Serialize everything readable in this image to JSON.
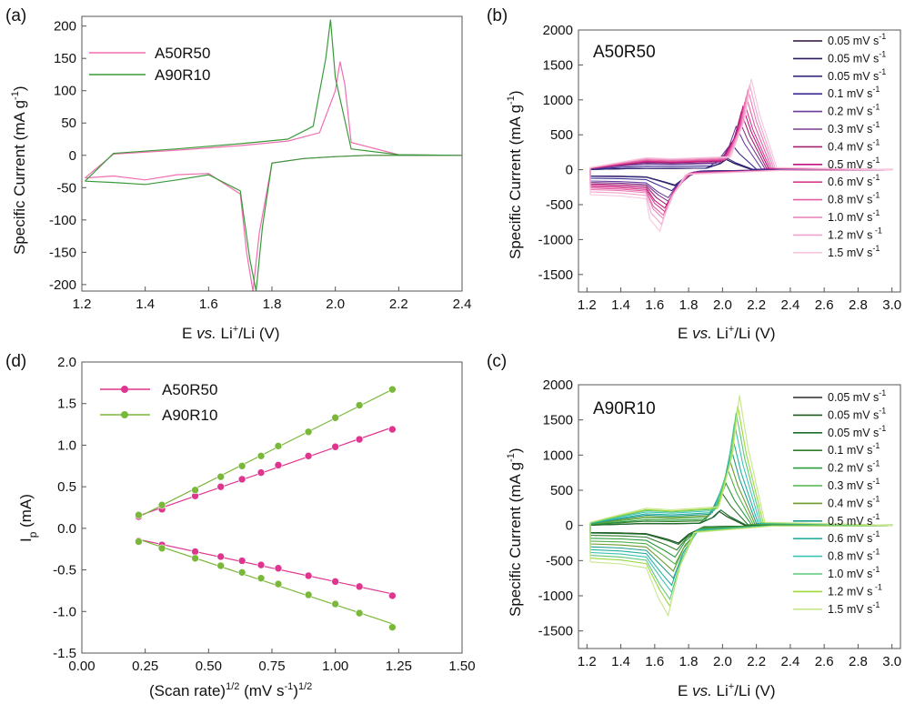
{
  "panels": {
    "a": {
      "letter": "(a)",
      "ylabel": "Specific Current (mA g",
      "ylabel_sup": "-1",
      "ylabel_close": ")",
      "xlabel_pre": "E ",
      "xlabel_vs": "vs.",
      "xlabel_mid": " Li",
      "xlabel_sup": "+",
      "xlabel_post": "/Li (V)",
      "legend": [
        "A50R50",
        "A90R10"
      ]
    },
    "b": {
      "letter": "(b)",
      "sample": "A50R50",
      "ylabel": "Specific Current (mA g",
      "ylabel_sup": "-1",
      "ylabel_close": ")",
      "xlabel_pre": "E ",
      "xlabel_vs": "vs.",
      "xlabel_mid": " Li",
      "xlabel_sup": "+",
      "xlabel_post": "/Li (V)",
      "legend_rates": [
        "0.05 mV s",
        "0.05 mV s",
        "0.05 mV s",
        "0.1 mV s",
        "0.2 mV s",
        "0.3 mV s",
        "0.4 mV s",
        "0.5 mV s",
        "0.6 mV s",
        "0.8 mV s",
        "1.0 mV s",
        "1.2 mV s",
        "1.5 mV s"
      ],
      "legend_sup": "-1",
      "legend_sup_alt": "s-1"
    },
    "c": {
      "letter": "(c)",
      "sample": "A90R10",
      "ylabel": "Specific Current (mA g",
      "ylabel_sup": "-1",
      "ylabel_close": ")",
      "xlabel_pre": "E ",
      "xlabel_vs": "vs.",
      "xlabel_mid": " Li",
      "xlabel_sup": "+",
      "xlabel_post": "/Li (V)",
      "legend_rates": [
        "0.05 mV s",
        "0.05 mV s",
        "0.05 mV s",
        "0.1 mV s",
        "0.2 mV s",
        "0.3 mV s",
        "0.4 mV s",
        "0.5 mV s",
        "0.6 mV s",
        "0.8 mV s",
        "1.0 mV s",
        "1.2 mV s",
        "1.5 mV s"
      ],
      "legend_sup": "-1",
      "legend_sup_alt": "s-1"
    },
    "d": {
      "letter": "(d)",
      "ylabel_pre": "I",
      "ylabel_sub": "p",
      "ylabel_post": " (mA)",
      "xlabel_pre": "(Scan rate)",
      "xlabel_sup1": "1/2",
      "xlabel_mid": " (mV s",
      "xlabel_sup2": "-1",
      "xlabel_close": ")",
      "xlabel_sup3": "1/2",
      "legend": [
        "A50R50",
        "A90R10"
      ]
    }
  },
  "chart_data": [
    {
      "panel": "a",
      "type": "line",
      "xlim": [
        1.2,
        2.4
      ],
      "ylim": [
        -210,
        215
      ],
      "xticks": [
        "1.2",
        "1.4",
        "1.6",
        "1.8",
        "2.0",
        "2.2",
        "2.4"
      ],
      "yticks": [
        "-200",
        "-150",
        "-100",
        "-50",
        "0",
        "50",
        "100",
        "150",
        "200"
      ],
      "series": [
        {
          "name": "A50R50",
          "color": "#f06fb0",
          "x": [
            1.21,
            1.3,
            1.4,
            1.5,
            1.6,
            1.7,
            1.72,
            1.74,
            1.76,
            1.8,
            1.9,
            2.0,
            2.1,
            2.3,
            2.4,
            2.2,
            2.05,
            2.03,
            2.015,
            2.0,
            1.95,
            1.85,
            1.7,
            1.5,
            1.3,
            1.21
          ],
          "y": [
            -35,
            -32,
            -38,
            -30,
            -28,
            -60,
            -150,
            -210,
            -120,
            -12,
            -5,
            -2,
            0,
            0,
            0,
            1,
            20,
            110,
            145,
            100,
            35,
            22,
            15,
            8,
            2,
            -35
          ]
        },
        {
          "name": "A90R10",
          "color": "#3a9a3a",
          "x": [
            1.21,
            1.3,
            1.4,
            1.5,
            1.6,
            1.7,
            1.73,
            1.75,
            1.77,
            1.8,
            1.9,
            2.0,
            2.1,
            2.3,
            2.4,
            2.2,
            2.05,
            2.0,
            1.985,
            1.97,
            1.93,
            1.85,
            1.7,
            1.5,
            1.3,
            1.21
          ],
          "y": [
            -40,
            -42,
            -45,
            -38,
            -30,
            -55,
            -160,
            -210,
            -110,
            -12,
            -5,
            -2,
            0,
            0,
            0,
            1,
            10,
            120,
            210,
            150,
            45,
            25,
            18,
            10,
            3,
            -40
          ]
        }
      ]
    },
    {
      "panel": "b",
      "type": "line",
      "xlim": [
        1.15,
        3.05
      ],
      "ylim": [
        -1750,
        2000
      ],
      "xticks": [
        "1.2",
        "1.4",
        "1.6",
        "1.8",
        "2.0",
        "2.2",
        "2.4",
        "2.6",
        "2.8",
        "3.0"
      ],
      "yticks": [
        "-1500",
        "-1000",
        "-500",
        "0",
        "500",
        "1000",
        "1500",
        "2000"
      ],
      "rates": [
        0.05,
        0.05,
        0.05,
        0.1,
        0.2,
        0.3,
        0.4,
        0.5,
        0.6,
        0.8,
        1.0,
        1.2,
        1.5
      ],
      "anodic_peak": {
        "E": [
          2.02,
          2.02,
          2.03,
          2.05,
          2.08,
          2.1,
          2.11,
          2.12,
          2.13,
          2.14,
          2.15,
          2.16,
          2.17
        ],
        "I": [
          150,
          150,
          160,
          380,
          620,
          700,
          820,
          900,
          950,
          1050,
          1150,
          1220,
          1300
        ]
      },
      "cathodic_peak": {
        "E": [
          1.72,
          1.72,
          1.72,
          1.7,
          1.68,
          1.68,
          1.67,
          1.66,
          1.66,
          1.65,
          1.65,
          1.64,
          1.63
        ],
        "I": [
          -220,
          -220,
          -230,
          -300,
          -400,
          -450,
          -500,
          -550,
          -600,
          -650,
          -700,
          -780,
          -880
        ]
      },
      "colors": [
        "#2a0f35",
        "#2d1b5e",
        "#332a7c",
        "#3b2b92",
        "#6a3c9e",
        "#7c3a8e",
        "#a3236f",
        "#c5127c",
        "#d83a8e",
        "#e35ea5",
        "#ea80b8",
        "#f2a3cc",
        "#f7c4dd"
      ]
    },
    {
      "panel": "c",
      "type": "line",
      "xlim": [
        1.15,
        3.05
      ],
      "ylim": [
        -1750,
        2000
      ],
      "xticks": [
        "1.2",
        "1.4",
        "1.6",
        "1.8",
        "2.0",
        "2.2",
        "2.4",
        "2.6",
        "2.8",
        "3.0"
      ],
      "yticks": [
        "-1500",
        "-1000",
        "-500",
        "0",
        "500",
        "1000",
        "1500",
        "2000"
      ],
      "rates": [
        0.05,
        0.05,
        0.05,
        0.1,
        0.2,
        0.3,
        0.4,
        0.5,
        0.6,
        0.8,
        1.0,
        1.2,
        1.5
      ],
      "anodic_peak": {
        "E": [
          1.98,
          1.98,
          1.99,
          2.0,
          2.02,
          2.03,
          2.04,
          2.05,
          2.06,
          2.07,
          2.08,
          2.09,
          2.1
        ],
        "I": [
          200,
          200,
          220,
          450,
          600,
          800,
          950,
          1100,
          1250,
          1450,
          1600,
          1700,
          1850
        ]
      },
      "cathodic_peak": {
        "E": [
          1.74,
          1.74,
          1.74,
          1.73,
          1.72,
          1.72,
          1.71,
          1.71,
          1.7,
          1.7,
          1.69,
          1.69,
          1.68
        ],
        "I": [
          -250,
          -250,
          -270,
          -350,
          -450,
          -550,
          -650,
          -750,
          -850,
          -950,
          -1050,
          -1150,
          -1280
        ]
      },
      "colors": [
        "#2a2a2a",
        "#1f5a1f",
        "#1d6e2c",
        "#2f7d2a",
        "#2a9a3c",
        "#4fb04a",
        "#6c9a2a",
        "#1f9c8e",
        "#26b0a0",
        "#3cc3b3",
        "#5ac87a",
        "#9ad83c",
        "#c8e68a"
      ]
    },
    {
      "panel": "d",
      "type": "scatter",
      "xlim": [
        0.0,
        1.5
      ],
      "ylim": [
        -1.5,
        2.0
      ],
      "xticks": [
        "0.00",
        "0.25",
        "0.50",
        "0.75",
        "1.00",
        "1.25",
        "1.50"
      ],
      "yticks": [
        "-1.5",
        "-1.0",
        "-0.5",
        "0.0",
        "0.5",
        "1.0",
        "1.5",
        "2.0"
      ],
      "x": [
        0.224,
        0.316,
        0.447,
        0.548,
        0.632,
        0.707,
        0.775,
        0.894,
        1.0,
        1.095,
        1.225
      ],
      "series": [
        {
          "name": "A50R50",
          "group": "anodic",
          "color": "#e0358f",
          "y": [
            0.14,
            0.23,
            0.39,
            0.5,
            0.59,
            0.67,
            0.76,
            0.87,
            0.98,
            1.07,
            1.19
          ]
        },
        {
          "name": "A90R10",
          "group": "anodic",
          "color": "#7ab83a",
          "y": [
            0.16,
            0.28,
            0.46,
            0.62,
            0.75,
            0.87,
            0.99,
            1.16,
            1.33,
            1.48,
            1.67
          ]
        },
        {
          "name": "A50R50",
          "group": "cathodic",
          "color": "#e0358f",
          "y": [
            -0.15,
            -0.2,
            -0.28,
            -0.34,
            -0.39,
            -0.44,
            -0.48,
            -0.57,
            -0.64,
            -0.7,
            -0.81
          ]
        },
        {
          "name": "A90R10",
          "group": "cathodic",
          "color": "#7ab83a",
          "y": [
            -0.16,
            -0.24,
            -0.36,
            -0.45,
            -0.53,
            -0.6,
            -0.67,
            -0.8,
            -0.91,
            -1.02,
            -1.19
          ]
        }
      ]
    }
  ]
}
